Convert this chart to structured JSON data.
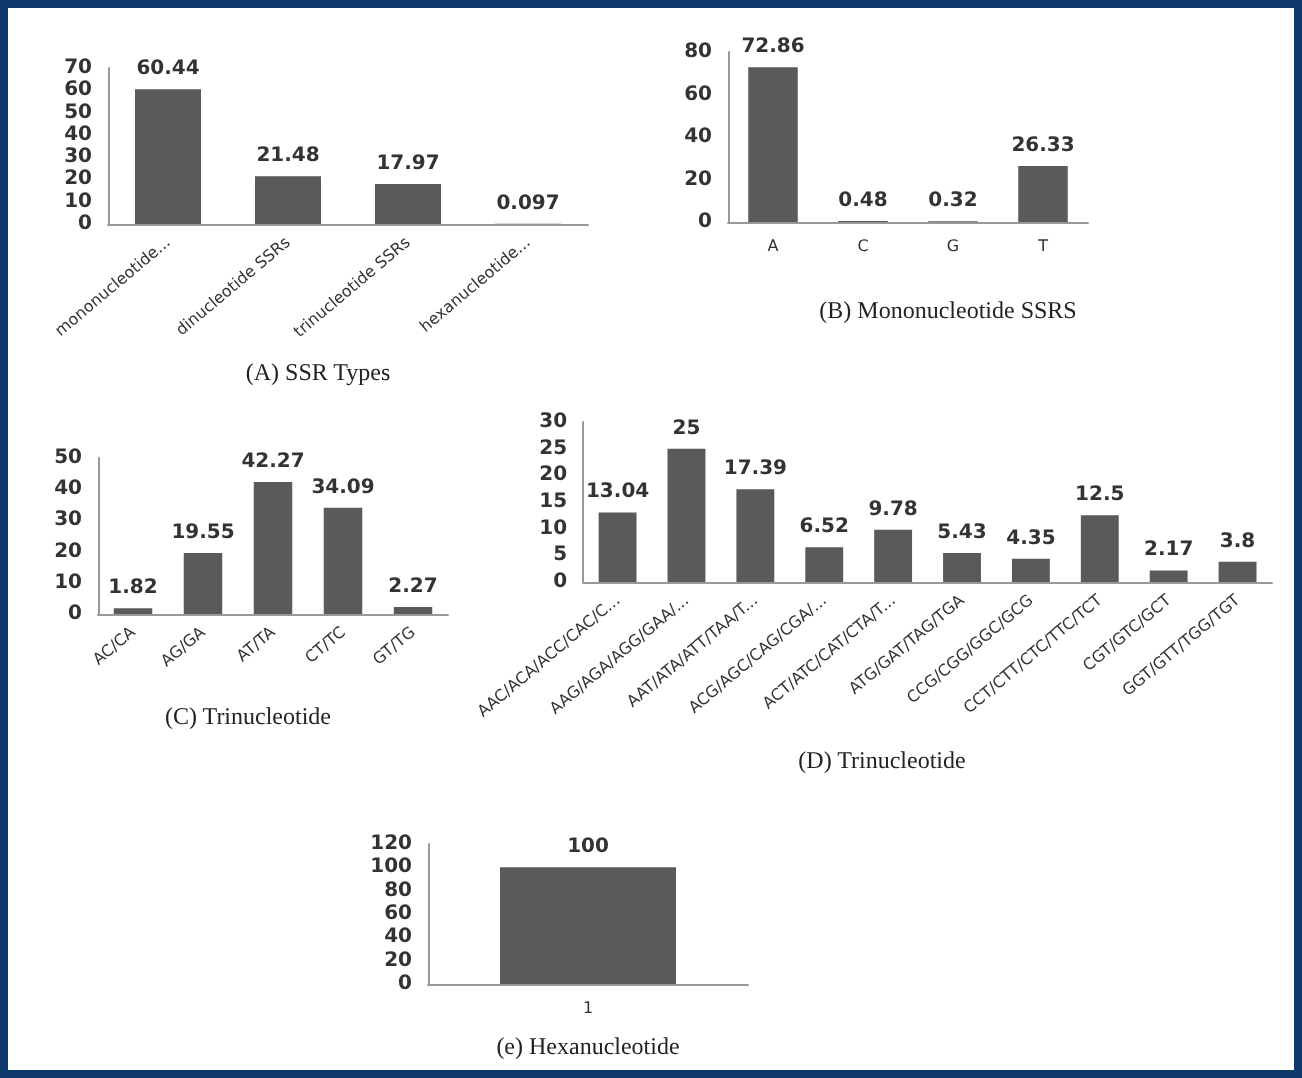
{
  "chart_data": [
    {
      "type": "bar",
      "title": "(A) SSR Types",
      "categories": [
        "mononucleotide...",
        "dinucleotide SSRs",
        "trinucleotide SSRs",
        "hexanucleotide..."
      ],
      "values": [
        60.44,
        21.48,
        17.97,
        0.097
      ],
      "color": "#5a5a5a",
      "ylim": [
        0,
        70
      ],
      "yticks": [
        0,
        10,
        20,
        30,
        40,
        50,
        60,
        70
      ],
      "data_labels": true
    },
    {
      "type": "bar",
      "title": "(B) Mononucleotide SSRS",
      "categories": [
        "A",
        "C",
        "G",
        "T"
      ],
      "values": [
        72.86,
        0.48,
        0.32,
        26.33
      ],
      "color": "#5a5a5a",
      "ylim": [
        0,
        80
      ],
      "yticks": [
        0,
        20,
        40,
        60,
        80
      ],
      "data_labels": true
    },
    {
      "type": "bar",
      "title": "(C) Trinucleotide",
      "categories": [
        "AC/CA",
        "AG/GA",
        "AT/TA",
        "CT/TC",
        "GT/TG"
      ],
      "values": [
        1.82,
        19.55,
        42.27,
        34.09,
        2.27
      ],
      "color": "#5a5a5a",
      "ylim": [
        0,
        50
      ],
      "yticks": [
        0,
        10,
        20,
        30,
        40,
        50
      ],
      "data_labels": true
    },
    {
      "type": "bar",
      "title": "(D) Trinucleotide",
      "categories": [
        "AAC/ACA/ACC/CAC/C...",
        "AAG/AGA/AGG/GAA/...",
        "AAT/ATA/ATT/TAA/T...",
        "ACG/AGC/CAG/CGA/...",
        "ACT/ATC/CAT/CTA/T...",
        "ATG/GAT/TAG/TGA",
        "CCG/CGG/GGC/GCG",
        "CCT/CTT/CTC/TTC/TCT",
        "CGT/GTC/GCT",
        "GGT/GTT/TGG/TGT"
      ],
      "values": [
        13.04,
        25,
        17.39,
        6.52,
        9.78,
        5.43,
        4.35,
        12.5,
        2.17,
        3.8
      ],
      "color": "#5a5a5a",
      "ylim": [
        0,
        30
      ],
      "yticks": [
        0,
        5,
        10,
        15,
        20,
        25,
        30
      ],
      "data_labels": true
    },
    {
      "type": "bar",
      "title": "(e) Hexanucleotide",
      "categories": [
        "1"
      ],
      "values": [
        100
      ],
      "color": "#5a5a5a",
      "ylim": [
        0,
        120
      ],
      "yticks": [
        0,
        20,
        40,
        60,
        80,
        100,
        120
      ],
      "data_labels": true
    }
  ]
}
